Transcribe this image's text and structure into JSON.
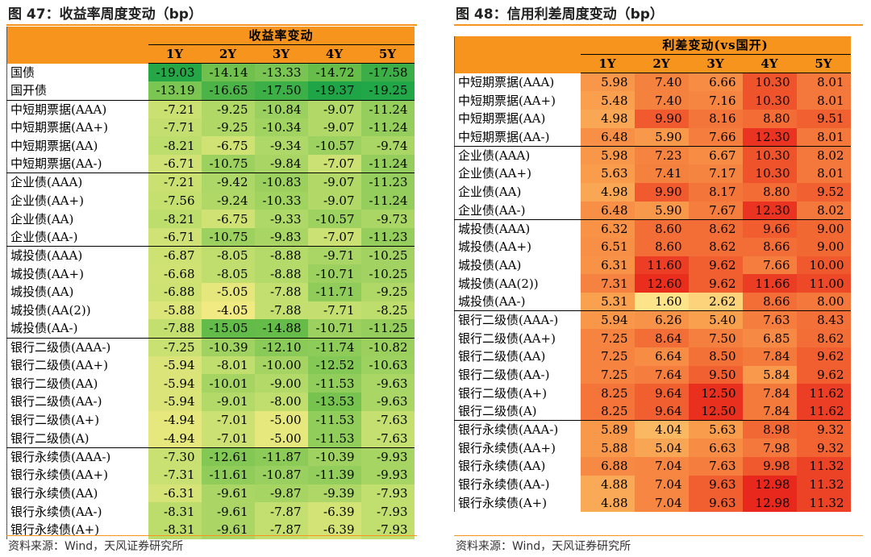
{
  "left": {
    "title": "图 47：收益率周度变动（bp）",
    "header": "收益率变动",
    "years": [
      "1Y",
      "2Y",
      "3Y",
      "4Y",
      "5Y"
    ],
    "groups": [
      {
        "rows": [
          {
            "label": "国债",
            "values": [
              "-19.03",
              "-14.14",
              "-13.33",
              "-14.72",
              "-17.58"
            ]
          },
          {
            "label": "国开债",
            "values": [
              "-13.19",
              "-16.65",
              "-17.50",
              "-19.37",
              "-19.25"
            ]
          }
        ]
      },
      {
        "rows": [
          {
            "label": "中短期票据(AAA)",
            "values": [
              "-7.21",
              "-9.25",
              "-10.84",
              "-9.07",
              "-11.24"
            ]
          },
          {
            "label": "中短期票据(AA+)",
            "values": [
              "-7.71",
              "-9.25",
              "-10.34",
              "-9.07",
              "-11.24"
            ]
          },
          {
            "label": "中短期票据(AA)",
            "values": [
              "-8.21",
              "-6.75",
              "-9.34",
              "-10.57",
              "-9.74"
            ]
          },
          {
            "label": "中短期票据(AA-)",
            "values": [
              "-6.71",
              "-10.75",
              "-9.84",
              "-7.07",
              "-11.24"
            ]
          }
        ]
      },
      {
        "rows": [
          {
            "label": "企业债(AAA)",
            "values": [
              "-7.21",
              "-9.42",
              "-10.83",
              "-9.07",
              "-11.23"
            ]
          },
          {
            "label": "企业债(AA+)",
            "values": [
              "-7.56",
              "-9.24",
              "-10.33",
              "-9.07",
              "-11.24"
            ]
          },
          {
            "label": "企业债(AA)",
            "values": [
              "-8.21",
              "-6.75",
              "-9.33",
              "-10.57",
              "-9.73"
            ]
          },
          {
            "label": "企业债(AA-)",
            "values": [
              "-6.71",
              "-10.75",
              "-9.83",
              "-7.07",
              "-11.23"
            ]
          }
        ]
      },
      {
        "rows": [
          {
            "label": "城投债(AAA)",
            "values": [
              "-6.87",
              "-8.05",
              "-8.88",
              "-9.71",
              "-10.25"
            ]
          },
          {
            "label": "城投债(AA+)",
            "values": [
              "-6.68",
              "-8.05",
              "-8.88",
              "-10.71",
              "-10.25"
            ]
          },
          {
            "label": "城投债(AA)",
            "values": [
              "-6.88",
              "-5.05",
              "-7.88",
              "-11.71",
              "-9.25"
            ]
          },
          {
            "label": "城投债(AA(2))",
            "values": [
              "-5.88",
              "-4.05",
              "-7.88",
              "-7.71",
              "-8.25"
            ]
          },
          {
            "label": "城投债(AA-)",
            "values": [
              "-7.88",
              "-15.05",
              "-14.88",
              "-10.71",
              "-11.25"
            ]
          }
        ]
      },
      {
        "rows": [
          {
            "label": "银行二级债(AAA-)",
            "values": [
              "-7.25",
              "-10.39",
              "-12.10",
              "-11.74",
              "-10.82"
            ]
          },
          {
            "label": "银行二级债(AA+)",
            "values": [
              "-5.94",
              "-8.01",
              "-10.00",
              "-12.52",
              "-10.63"
            ]
          },
          {
            "label": "银行二级债(AA)",
            "values": [
              "-5.94",
              "-10.01",
              "-9.00",
              "-11.53",
              "-9.63"
            ]
          },
          {
            "label": "银行二级债(AA-)",
            "values": [
              "-5.94",
              "-9.01",
              "-8.00",
              "-13.53",
              "-9.63"
            ]
          },
          {
            "label": "银行二级债(A+)",
            "values": [
              "-4.94",
              "-7.01",
              "-5.00",
              "-11.53",
              "-7.63"
            ]
          },
          {
            "label": "银行二级债(A)",
            "values": [
              "-4.94",
              "-7.01",
              "-5.00",
              "-11.53",
              "-7.63"
            ]
          }
        ]
      },
      {
        "rows": [
          {
            "label": "银行永续债(AAA-)",
            "values": [
              "-7.30",
              "-12.61",
              "-11.87",
              "-10.39",
              "-9.93"
            ]
          },
          {
            "label": "银行永续债(AA+)",
            "values": [
              "-7.31",
              "-11.61",
              "-10.87",
              "-11.39",
              "-9.93"
            ]
          },
          {
            "label": "银行永续债(AA)",
            "values": [
              "-6.31",
              "-9.61",
              "-9.87",
              "-9.39",
              "-7.93"
            ]
          },
          {
            "label": "银行永续债(AA-)",
            "values": [
              "-8.31",
              "-9.61",
              "-7.87",
              "-6.39",
              "-7.93"
            ]
          },
          {
            "label": "银行永续债(A+)",
            "values": [
              "-8.31",
              "-9.61",
              "-7.87",
              "-6.39",
              "-7.93"
            ]
          }
        ]
      }
    ],
    "source": "资料来源：Wind，天风证券研究所"
  },
  "right": {
    "title": "图 48：信用利差周度变动（bp）",
    "header": "利差变动(vs国开)",
    "years": [
      "1Y",
      "2Y",
      "3Y",
      "4Y",
      "5Y"
    ],
    "groups": [
      {
        "rows": [
          {
            "label": "中短期票据(AAA)",
            "values": [
              "5.98",
              "7.40",
              "6.66",
              "10.30",
              "8.01"
            ]
          },
          {
            "label": "中短期票据(AA+)",
            "values": [
              "5.48",
              "7.40",
              "7.16",
              "10.30",
              "8.01"
            ]
          },
          {
            "label": "中短期票据(AA)",
            "values": [
              "4.98",
              "9.90",
              "8.16",
              "8.80",
              "9.51"
            ]
          },
          {
            "label": "中短期票据(AA-)",
            "values": [
              "6.48",
              "5.90",
              "7.66",
              "12.30",
              "8.01"
            ]
          }
        ]
      },
      {
        "rows": [
          {
            "label": "企业债(AAA)",
            "values": [
              "5.98",
              "7.23",
              "6.67",
              "10.30",
              "8.02"
            ]
          },
          {
            "label": "企业债(AA+)",
            "values": [
              "5.63",
              "7.41",
              "7.17",
              "10.30",
              "8.01"
            ]
          },
          {
            "label": "企业债(AA)",
            "values": [
              "4.98",
              "9.90",
              "8.17",
              "8.80",
              "9.52"
            ]
          },
          {
            "label": "企业债(AA-)",
            "values": [
              "6.48",
              "5.90",
              "7.67",
              "12.30",
              "8.02"
            ]
          }
        ]
      },
      {
        "rows": [
          {
            "label": "城投债(AAA)",
            "values": [
              "6.32",
              "8.60",
              "8.62",
              "9.66",
              "9.00"
            ]
          },
          {
            "label": "城投债(AA+)",
            "values": [
              "6.51",
              "8.60",
              "8.62",
              "8.66",
              "9.00"
            ]
          },
          {
            "label": "城投债(AA)",
            "values": [
              "6.31",
              "11.60",
              "9.62",
              "7.66",
              "10.00"
            ]
          },
          {
            "label": "城投债(AA(2))",
            "values": [
              "7.31",
              "12.60",
              "9.62",
              "11.66",
              "11.00"
            ]
          },
          {
            "label": "城投债(AA-)",
            "values": [
              "5.31",
              "1.60",
              "2.62",
              "8.66",
              "8.00"
            ]
          }
        ]
      },
      {
        "rows": [
          {
            "label": "银行二级债(AAA-)",
            "values": [
              "5.94",
              "6.26",
              "5.40",
              "7.63",
              "8.43"
            ]
          },
          {
            "label": "银行二级债(AA+)",
            "values": [
              "7.25",
              "8.64",
              "7.50",
              "6.85",
              "8.62"
            ]
          },
          {
            "label": "银行二级债(AA)",
            "values": [
              "7.25",
              "6.64",
              "8.50",
              "7.84",
              "9.62"
            ]
          },
          {
            "label": "银行二级债(AA-)",
            "values": [
              "7.25",
              "7.64",
              "9.50",
              "5.84",
              "9.62"
            ]
          },
          {
            "label": "银行二级债(A+)",
            "values": [
              "8.25",
              "9.64",
              "12.50",
              "7.84",
              "11.62"
            ]
          },
          {
            "label": "银行二级债(A)",
            "values": [
              "8.25",
              "9.64",
              "12.50",
              "7.84",
              "11.62"
            ]
          }
        ]
      },
      {
        "rows": [
          {
            "label": "银行永续债(AAA-)",
            "values": [
              "5.89",
              "4.04",
              "5.63",
              "8.98",
              "9.32"
            ]
          },
          {
            "label": "银行永续债(AA+)",
            "values": [
              "5.88",
              "5.04",
              "6.63",
              "7.98",
              "9.32"
            ]
          },
          {
            "label": "银行永续债(AA)",
            "values": [
              "6.88",
              "7.04",
              "7.63",
              "9.98",
              "11.32"
            ]
          },
          {
            "label": "银行永续债(AA-)",
            "values": [
              "4.88",
              "7.04",
              "9.63",
              "12.98",
              "11.32"
            ]
          },
          {
            "label": "银行永续债(A+)",
            "values": [
              "4.88",
              "7.04",
              "9.63",
              "12.98",
              "11.32"
            ]
          }
        ]
      }
    ],
    "source": "资料来源：Wind，天风证券研究所"
  },
  "colors": {
    "accent": "#f7941d",
    "green_scale": [
      "#1fa548",
      "#5cb946",
      "#8fcc5a",
      "#c2df6f",
      "#f2ea82"
    ],
    "red_scale": [
      "#fde48a",
      "#f9a04e",
      "#f26532",
      "#e8281c"
    ]
  }
}
